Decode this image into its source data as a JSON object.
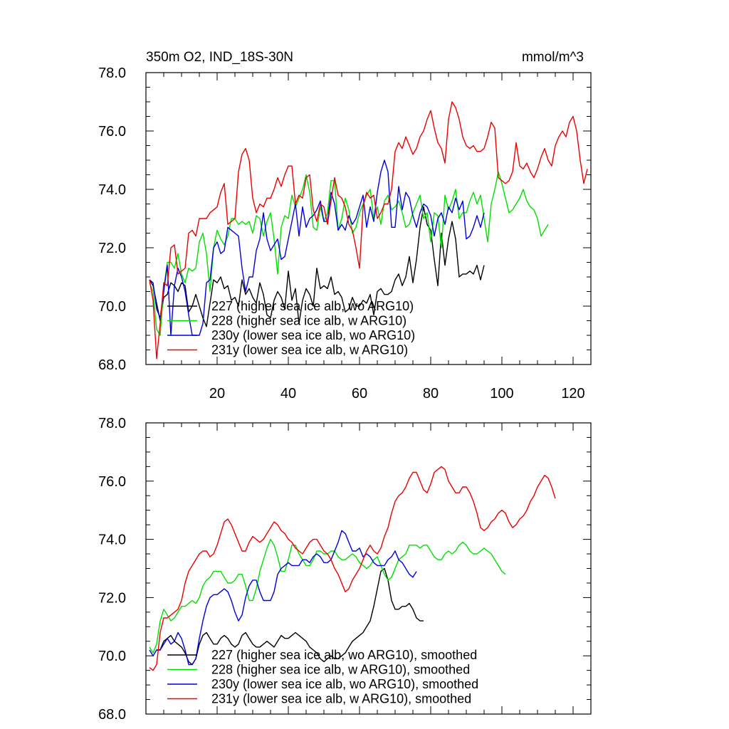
{
  "figure": {
    "title_left": "350m O2, IND_18S-30N",
    "units": "mmol/m^3"
  },
  "chart_data": [
    {
      "type": "line",
      "id": "top",
      "title": "350m O2, IND_18S-30N",
      "units": "mmol/m^3",
      "xlim": [
        0,
        125
      ],
      "ylim": [
        68,
        78
      ],
      "x_ticks": [
        20,
        40,
        60,
        80,
        100,
        120
      ],
      "x_tick_labels": [
        "20",
        "40",
        "60",
        "80",
        "100",
        "120"
      ],
      "y_ticks": [
        68,
        70,
        72,
        74,
        76,
        78
      ],
      "y_tick_labels": [
        "68.0",
        "70.0",
        "72.0",
        "74.0",
        "76.0",
        "78.0"
      ],
      "legend_position": "lower-left",
      "series": [
        {
          "name": "227 (higher sea ice alb, wo ARG10)",
          "color": "#000000",
          "x_start": 1,
          "values": [
            70.9,
            70.7,
            70.1,
            69.5,
            70.3,
            70.4,
            70.8,
            70.7,
            70.5,
            70.8,
            70.7,
            69.8,
            70.0,
            70.4,
            70.0,
            69.6,
            69.3,
            70.1,
            70.9,
            70.8,
            71.0,
            70.6,
            70.7,
            70.2,
            70.3,
            70.0,
            70.9,
            70.4,
            70.6,
            70.3,
            70.1,
            70.8,
            70.4,
            69.7,
            69.6,
            70.2,
            70.5,
            70.3,
            69.9,
            71.2,
            70.2,
            70.6,
            69.4,
            70.2,
            70.6,
            70.4,
            70.0,
            71.3,
            70.6,
            70.7,
            70.6,
            71.0,
            70.4,
            70.5,
            70.3,
            69.8,
            69.9,
            70.3,
            70.0,
            70.0,
            70.2,
            70.1,
            70.4,
            69.7,
            70.5,
            70.6,
            70.4,
            70.4,
            70.5,
            70.9,
            71.1,
            70.7,
            71.0,
            71.7,
            70.8,
            71.6,
            72.7,
            73.4,
            72.8,
            72.6,
            71.6,
            70.7,
            72.5,
            71.4,
            72.3,
            72.9,
            72.3,
            71.0,
            71.1,
            71.1,
            71.2,
            71.1,
            71.4,
            70.9,
            71.4
          ]
        },
        {
          "name": "228 (higher sea ice alb, w ARG10)",
          "color": "#00e000",
          "x_start": 1,
          "values": [
            70.8,
            70.5,
            69.2,
            69.0,
            70.6,
            71.5,
            71.5,
            71.3,
            71.8,
            71.1,
            70.8,
            71.3,
            71.2,
            71.3,
            72.2,
            72.5,
            71.8,
            70.5,
            72.0,
            72.6,
            72.3,
            72.1,
            72.4,
            73.0,
            73.0,
            72.8,
            72.9,
            72.8,
            72.9,
            72.5,
            73.1,
            73.0,
            72.4,
            72.9,
            73.2,
            72.3,
            71.1,
            72.7,
            73.1,
            73.0,
            73.8,
            73.4,
            73.7,
            74.0,
            74.5,
            73.9,
            72.7,
            72.6,
            73.4,
            72.9,
            73.2,
            74.3,
            74.3,
            72.6,
            73.0,
            73.7,
            73.3,
            72.5,
            72.7,
            73.2,
            73.5,
            73.8,
            74.0,
            73.0,
            73.4,
            72.8,
            73.6,
            73.8,
            73.3,
            73.4,
            73.6,
            73.2,
            72.7,
            72.8,
            73.2,
            73.5,
            73.8,
            73.0,
            73.2,
            72.2,
            73.2,
            73.1,
            72.0,
            73.8,
            73.3,
            73.6,
            74.0,
            73.0,
            73.2,
            73.2,
            73.6,
            73.9,
            73.5,
            73.8,
            73.0,
            72.2,
            73.5,
            74.0,
            74.6,
            74.2,
            73.7,
            73.2,
            73.3,
            73.5,
            73.7,
            74.0,
            73.6,
            73.4,
            73.3,
            73.0,
            72.4,
            72.6,
            72.8
          ]
        },
        {
          "name": "230y (lower sea ice alb, wo ARG10)",
          "color": "#0000e0",
          "x_start": 1,
          "values": [
            70.9,
            70.8,
            69.9,
            69.6,
            70.5,
            71.4,
            69.0,
            70.7,
            71.3,
            71.0,
            70.5,
            69.7,
            69.0,
            69.0,
            69.0,
            69.4,
            70.8,
            70.9,
            72.0,
            72.2,
            71.8,
            71.9,
            72.7,
            72.6,
            72.5,
            72.4,
            71.3,
            70.5,
            71.0,
            71.0,
            71.9,
            72.3,
            73.2,
            72.3,
            71.9,
            72.1,
            72.3,
            71.6,
            71.7,
            72.3,
            72.9,
            73.5,
            72.4,
            73.4,
            72.7,
            73.0,
            73.1,
            73.3,
            73.6,
            72.9,
            72.9,
            73.9,
            73.5,
            72.6,
            72.8,
            72.6,
            73.1,
            72.8,
            73.0,
            73.4,
            73.8,
            72.7,
            73.4,
            72.9,
            73.9,
            74.6,
            75.0,
            74.6,
            72.7,
            72.7,
            74.1,
            73.3,
            73.9,
            73.7,
            73.1,
            72.7,
            73.2,
            73.5,
            73.4,
            73.1,
            72.4,
            73.0,
            73.2,
            72.8,
            73.4,
            73.2,
            73.7,
            73.3,
            73.6,
            72.3,
            72.4,
            72.7,
            73.1,
            72.7,
            73.2
          ]
        },
        {
          "name": "231y (lower sea ice alb, w ARG10)",
          "color": "#ee0000",
          "x_start": 1,
          "values": [
            70.9,
            70.2,
            68.2,
            69.4,
            70.8,
            70.7,
            72.0,
            72.1,
            71.1,
            71.2,
            71.3,
            72.5,
            72.6,
            72.4,
            73.0,
            73.0,
            73.0,
            73.2,
            73.3,
            73.4,
            73.9,
            74.2,
            72.8,
            72.9,
            73.0,
            74.6,
            75.2,
            75.4,
            75.0,
            73.7,
            73.2,
            73.5,
            73.4,
            73.7,
            73.7,
            74.0,
            74.4,
            74.1,
            74.5,
            74.8,
            74.8,
            73.5,
            73.8,
            73.7,
            74.4,
            74.5,
            73.3,
            72.9,
            73.5,
            73.4,
            72.8,
            73.6,
            74.4,
            73.8,
            73.7,
            73.4,
            72.8,
            72.6,
            72.0,
            71.3,
            73.4,
            73.9,
            73.7,
            73.8,
            73.0,
            73.2,
            73.5,
            73.5,
            74.0,
            75.3,
            75.6,
            75.4,
            75.8,
            75.5,
            75.2,
            75.4,
            75.8,
            76.0,
            76.4,
            76.7,
            76.1,
            75.6,
            75.4,
            74.9,
            76.4,
            77.0,
            76.8,
            76.4,
            75.8,
            75.5,
            75.4,
            75.5,
            75.3,
            75.3,
            75.4,
            75.8,
            76.3,
            76.1,
            74.4,
            74.3,
            74.2,
            74.3,
            74.6,
            75.6,
            74.8,
            74.7,
            74.9,
            74.6,
            74.4,
            74.7,
            75.1,
            75.4,
            75.0,
            74.8,
            75.5,
            75.8,
            76.0,
            75.8,
            76.3,
            76.5,
            76.0,
            75.0,
            74.2,
            74.7
          ]
        }
      ],
      "legend_entries": [
        "227 (higher sea ice alb, wo ARG10)",
        "228 (higher sea ice alb, w ARG10)",
        "230y (lower sea ice alb, wo ARG10)",
        "231y (lower sea ice alb, w ARG10)"
      ]
    },
    {
      "type": "line",
      "id": "bottom",
      "title": "",
      "xlim": [
        0,
        125
      ],
      "ylim": [
        68,
        78
      ],
      "x_ticks": [
        20,
        40,
        60,
        80,
        100,
        120
      ],
      "x_tick_labels": [],
      "y_ticks": [
        68,
        70,
        72,
        74,
        76,
        78
      ],
      "y_tick_labels": [
        "68.0",
        "70.0",
        "72.0",
        "74.0",
        "76.0",
        "78.0"
      ],
      "legend_position": "lower-left",
      "series": [
        {
          "name": "227 (higher sea ice alb, wo ARG10), smoothed",
          "color": "#000000",
          "x_start": 3,
          "values": [
            70.2,
            70.2,
            70.5,
            70.6,
            70.7,
            70.5,
            70.4,
            70.3,
            70.1,
            69.8,
            69.7,
            69.9,
            70.4,
            70.7,
            70.8,
            70.6,
            70.4,
            70.4,
            70.6,
            70.7,
            70.6,
            70.4,
            70.3,
            70.4,
            70.7,
            70.8,
            70.6,
            70.4,
            70.3,
            70.3,
            70.4,
            70.5,
            70.4,
            70.3,
            70.5,
            70.7,
            70.6,
            70.6,
            70.7,
            70.8,
            70.7,
            70.6,
            70.5,
            70.3,
            70.2,
            70.1,
            69.9,
            69.8,
            69.9,
            70.0,
            69.9,
            69.9,
            70.0,
            70.1,
            70.3,
            70.5,
            70.6,
            70.7,
            70.8,
            71.0,
            71.2,
            71.7,
            72.3,
            72.9,
            73.0,
            72.6,
            71.9,
            71.6,
            71.6,
            71.7,
            71.7,
            71.8,
            71.6,
            71.3,
            71.2,
            71.2
          ]
        },
        {
          "name": "228 (higher sea ice alb, w ARG10), smoothed",
          "color": "#00e000",
          "x_start": 1,
          "values": [
            70.3,
            70.1,
            70.4,
            71.2,
            71.6,
            71.4,
            71.2,
            71.3,
            71.5,
            71.7,
            71.7,
            71.8,
            71.9,
            71.8,
            72.0,
            72.4,
            72.6,
            72.7,
            72.9,
            72.9,
            72.9,
            72.7,
            72.5,
            72.5,
            72.6,
            72.8,
            72.8,
            72.4,
            71.9,
            71.9,
            72.3,
            72.9,
            73.3,
            73.7,
            74.0,
            73.8,
            73.4,
            72.9,
            72.9,
            73.3,
            73.8,
            73.8,
            73.5,
            73.3,
            73.1,
            73.1,
            73.3,
            73.6,
            73.6,
            73.5,
            73.5,
            73.6,
            73.6,
            73.4,
            73.3,
            73.3,
            73.4,
            73.5,
            73.4,
            73.2,
            73.1,
            73.0,
            73.1,
            73.3,
            73.4,
            73.1,
            72.8,
            72.6,
            72.7,
            73.0,
            73.3,
            73.4,
            73.5,
            73.8,
            73.8,
            73.8,
            73.7,
            73.8,
            73.8,
            73.6,
            73.4,
            73.3,
            73.3,
            73.5,
            73.6,
            73.5,
            73.6,
            73.8,
            73.9,
            73.8,
            73.6,
            73.5,
            73.5,
            73.6,
            73.7,
            73.6,
            73.5,
            73.3,
            73.1,
            72.9,
            72.8
          ]
        },
        {
          "name": "230y (lower sea ice alb, wo ARG10), smoothed",
          "color": "#0000e0",
          "x_start": 1,
          "values": [
            70.2,
            70.0,
            70.2,
            70.2,
            70.4,
            70.6,
            70.4,
            70.5,
            70.8,
            70.6,
            70.2,
            69.7,
            69.7,
            69.9,
            70.6,
            71.2,
            71.7,
            72.0,
            72.1,
            72.1,
            72.2,
            72.3,
            72.2,
            71.9,
            71.5,
            71.2,
            71.4,
            72.0,
            72.4,
            72.6,
            72.6,
            72.2,
            71.9,
            71.9,
            71.9,
            72.2,
            72.8,
            73.0,
            73.1,
            73.2,
            73.1,
            73.1,
            73.1,
            73.3,
            73.3,
            73.2,
            73.4,
            73.5,
            73.4,
            73.2,
            73.2,
            73.3,
            73.6,
            73.9,
            74.3,
            74.2,
            73.9,
            73.6,
            73.6,
            73.7,
            73.4,
            73.5,
            73.4,
            73.2,
            73.1,
            73.1,
            73.1,
            73.3,
            73.4,
            73.6,
            73.3,
            73.2,
            73.0,
            72.8,
            72.7,
            72.9
          ]
        },
        {
          "name": "231y (lower sea ice alb, w ARG10), smoothed",
          "color": "#ee0000",
          "x_start": 1,
          "values": [
            69.6,
            69.5,
            69.7,
            70.8,
            71.3,
            71.3,
            71.4,
            71.5,
            71.6,
            71.9,
            72.5,
            72.9,
            73.1,
            73.3,
            73.5,
            73.6,
            73.6,
            73.4,
            73.5,
            73.8,
            74.2,
            74.6,
            74.7,
            74.5,
            74.2,
            73.9,
            73.6,
            73.6,
            73.9,
            74.1,
            74.0,
            73.9,
            74.0,
            74.2,
            74.4,
            74.6,
            74.5,
            74.3,
            74.2,
            74.0,
            73.9,
            73.7,
            73.6,
            73.5,
            73.7,
            73.9,
            74.0,
            74.0,
            73.8,
            73.6,
            73.5,
            73.3,
            73.0,
            72.8,
            72.5,
            72.2,
            72.3,
            72.6,
            72.8,
            73.0,
            73.3,
            73.6,
            73.8,
            73.6,
            73.5,
            73.7,
            74.1,
            74.4,
            74.9,
            75.3,
            75.5,
            75.6,
            75.8,
            76.1,
            76.3,
            76.3,
            76.0,
            75.7,
            75.6,
            75.9,
            76.3,
            76.4,
            76.5,
            76.4,
            76.0,
            75.8,
            75.6,
            75.6,
            75.8,
            75.8,
            75.6,
            75.3,
            74.9,
            74.4,
            74.3,
            74.4,
            74.6,
            74.7,
            74.9,
            75.0,
            74.9,
            74.6,
            74.4,
            74.5,
            74.7,
            74.8,
            75.0,
            75.3,
            75.5,
            75.8,
            76.0,
            76.2,
            76.1,
            75.8,
            75.4
          ]
        }
      ],
      "legend_entries": [
        "227 (higher sea ice alb, wo ARG10), smoothed",
        "228 (higher sea ice alb, w ARG10), smoothed",
        "230y (lower sea ice alb, wo ARG10), smoothed",
        "231y (lower sea ice alb, w ARG10), smoothed"
      ]
    }
  ]
}
